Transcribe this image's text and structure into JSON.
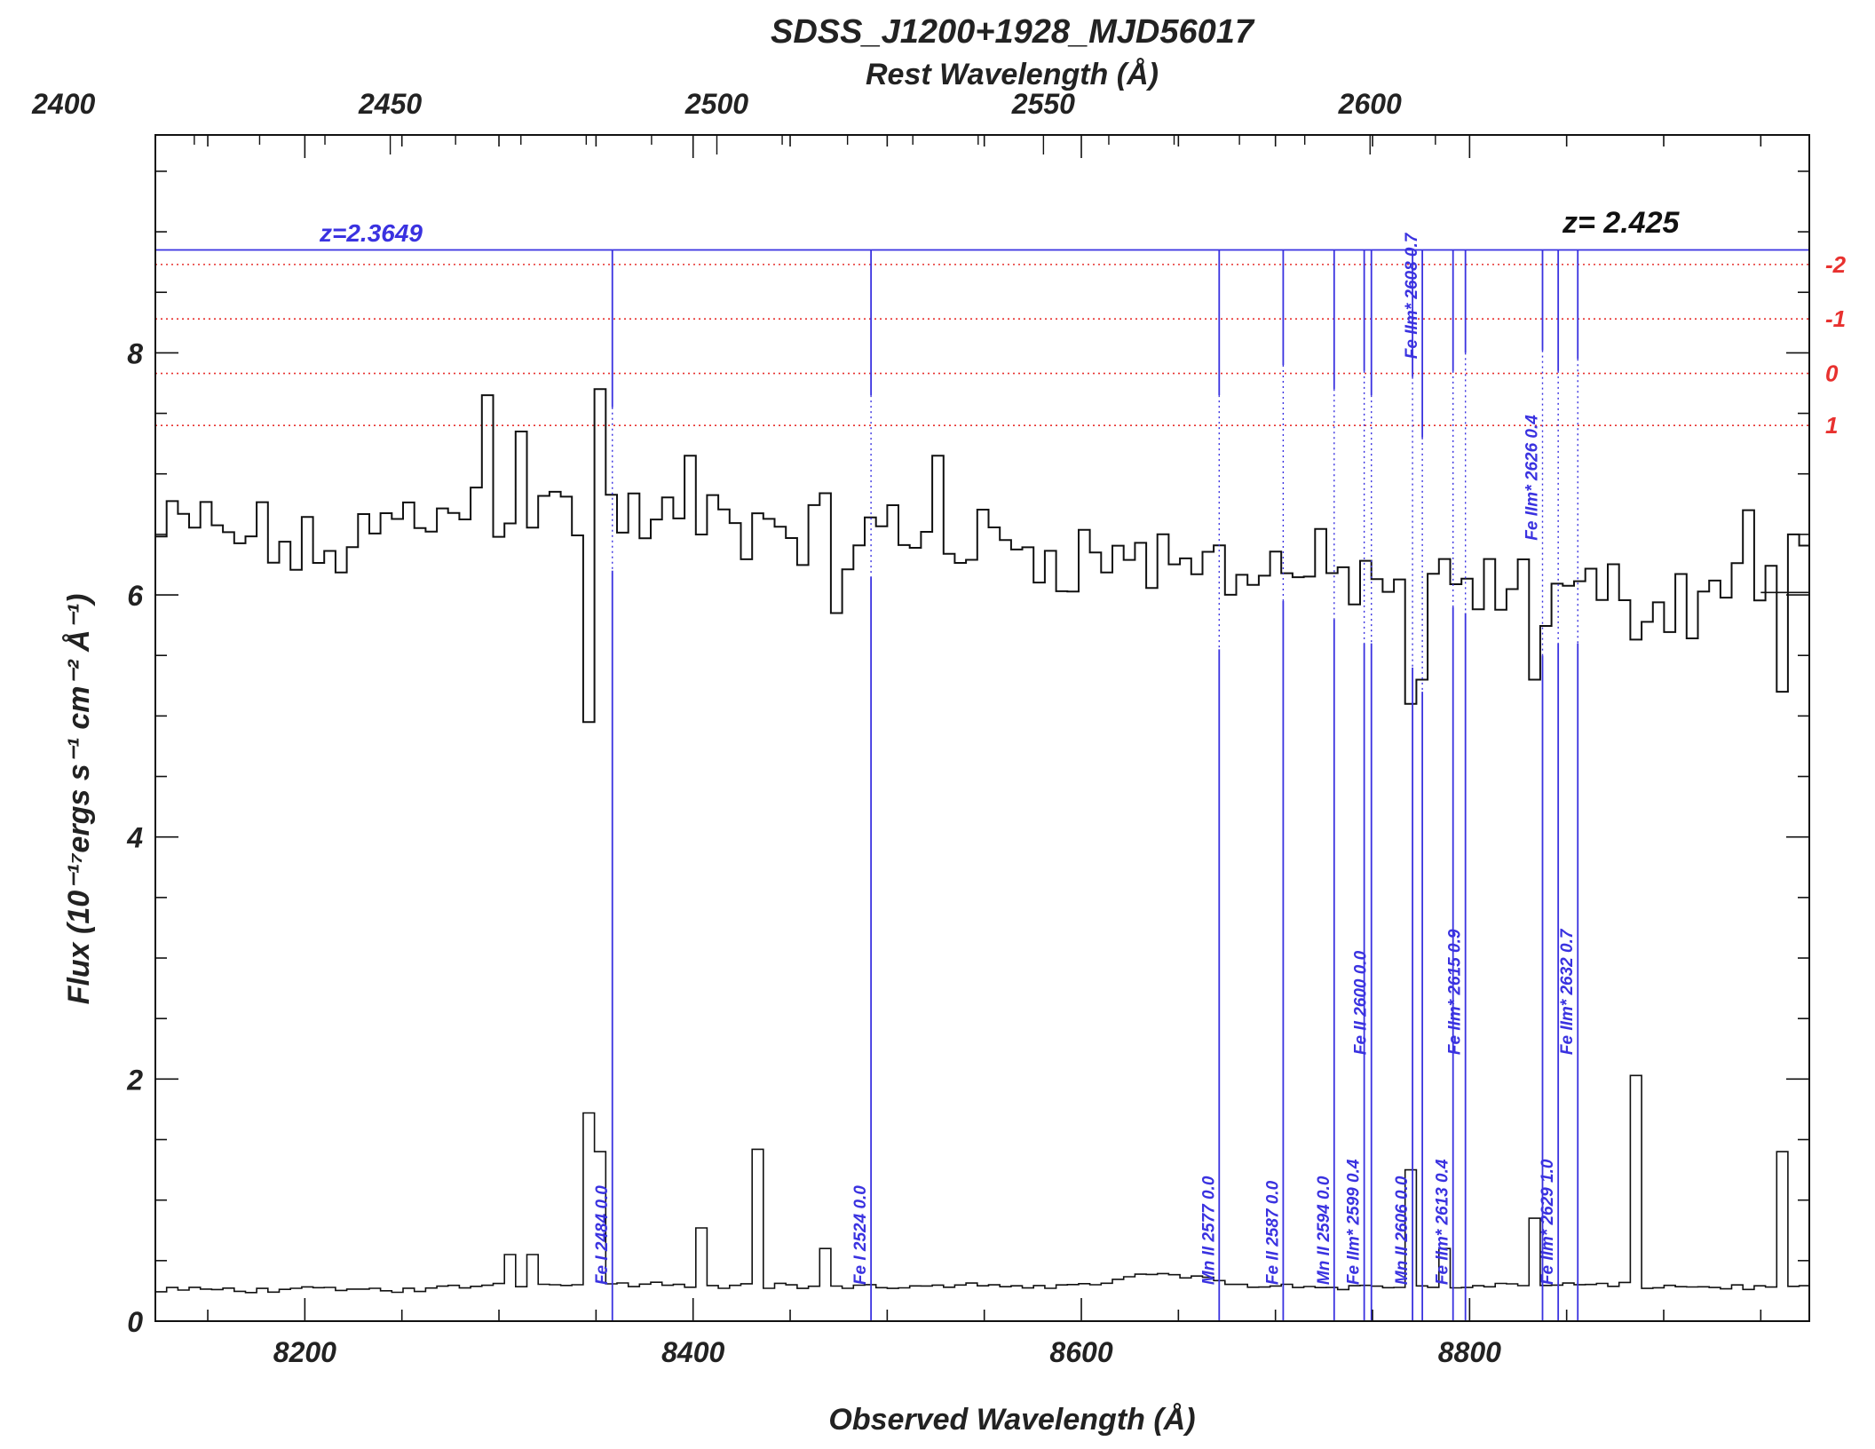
{
  "chart_data": {
    "type": "line",
    "title": "SDSS_J1200+1928_MJD56017",
    "xlabel": "Observed Wavelength (Å)",
    "ylabel": "Flux (10⁻¹⁷ergs s⁻¹ cm⁻² Å⁻¹)",
    "top_axis_label": "Rest Wavelength (Å)",
    "xlim": [
      8123,
      8975
    ],
    "ylim": [
      0,
      9.8
    ],
    "x_ticks": [
      8200,
      8400,
      8600,
      8800
    ],
    "y_ticks": [
      0,
      2,
      4,
      6,
      8
    ],
    "top_ticks": [
      2400,
      2450,
      2500,
      2550,
      2600
    ],
    "redshift_scale": 3.3649,
    "absorber_label": "z=2.3649",
    "qso_label": "z= 2.425",
    "absorber_level": 8.85,
    "dotted_levels": [
      {
        "label": "-2",
        "y": 8.73
      },
      {
        "label": "-1",
        "y": 8.28
      },
      {
        "label": "0",
        "y": 7.83
      },
      {
        "label": "1",
        "y": 7.4
      }
    ],
    "absorption_lines": [
      {
        "label": "Fe I 2484 0.0",
        "rest": 2484.0,
        "upper_bottom": 7.55,
        "lower_top": 6.2,
        "label_pos": "low"
      },
      {
        "label": "Fe I 2524 0.0",
        "rest": 2523.6,
        "upper_bottom": 7.65,
        "lower_top": 6.15,
        "label_pos": "low"
      },
      {
        "label": "Mn II 2577 0.0",
        "rest": 2576.9,
        "upper_bottom": 7.65,
        "lower_top": 5.55,
        "label_pos": "low"
      },
      {
        "label": "Fe II 2587 0.0",
        "rest": 2586.7,
        "upper_bottom": 7.9,
        "lower_top": 5.95,
        "label_pos": "low"
      },
      {
        "label": "Mn II 2594 0.0",
        "rest": 2594.5,
        "upper_bottom": 7.7,
        "lower_top": 5.8,
        "label_pos": "low"
      },
      {
        "label": "Fe IIm* 2599 0.4",
        "rest": 2599.1,
        "upper_bottom": 7.85,
        "lower_top": 5.6,
        "label_pos": "low"
      },
      {
        "label": "Fe II 2600 0.0",
        "rest": 2600.2,
        "upper_bottom": 7.65,
        "lower_top": 5.6,
        "label_pos": "mid"
      },
      {
        "label": "Mn II 2606 0.0",
        "rest": 2606.5,
        "upper_bottom": 7.8,
        "lower_top": 5.4,
        "label_pos": "low"
      },
      {
        "label": "Fe IIm* 2608 0.7",
        "rest": 2608.0,
        "upper_bottom": 7.3,
        "lower_top": 5.2,
        "label_pos": "top"
      },
      {
        "label": "Fe IIm* 2613 0.4",
        "rest": 2612.7,
        "upper_bottom": 7.85,
        "lower_top": 5.9,
        "label_pos": "low"
      },
      {
        "label": "Fe IIm* 2615 0.9",
        "rest": 2614.6,
        "upper_bottom": 8.0,
        "lower_top": 5.85,
        "label_pos": "mid"
      },
      {
        "label": "Fe IIm* 2626 0.4",
        "rest": 2626.4,
        "upper_bottom": 8.02,
        "lower_top": 5.5,
        "label_pos": "upper"
      },
      {
        "label": "Fe IIm* 2629 1.0",
        "rest": 2628.8,
        "upper_bottom": 7.85,
        "lower_top": 5.6,
        "label_pos": "low"
      },
      {
        "label": "Fe IIm* 2632 0.7",
        "rest": 2631.8,
        "upper_bottom": 7.95,
        "lower_top": 5.6,
        "label_pos": "mid"
      }
    ],
    "flux_anchors": [
      [
        8123,
        6.5
      ],
      [
        8150,
        6.55
      ],
      [
        8180,
        6.45
      ],
      [
        8200,
        6.3
      ],
      [
        8230,
        6.5
      ],
      [
        8260,
        6.65
      ],
      [
        8290,
        6.75
      ],
      [
        8320,
        6.7
      ],
      [
        8350,
        6.65
      ],
      [
        8380,
        6.6
      ],
      [
        8410,
        6.6
      ],
      [
        8440,
        6.55
      ],
      [
        8470,
        6.5
      ],
      [
        8500,
        6.5
      ],
      [
        8530,
        6.45
      ],
      [
        8560,
        6.4
      ],
      [
        8590,
        6.35
      ],
      [
        8620,
        6.3
      ],
      [
        8650,
        6.25
      ],
      [
        8680,
        6.25
      ],
      [
        8710,
        6.2
      ],
      [
        8740,
        6.15
      ],
      [
        8760,
        6.1
      ],
      [
        8790,
        6.05
      ],
      [
        8820,
        6.0
      ],
      [
        8850,
        6.05
      ],
      [
        8880,
        5.95
      ],
      [
        8910,
        5.95
      ],
      [
        8940,
        6.2
      ],
      [
        8975,
        6.15
      ]
    ],
    "flux_spikes": [
      {
        "x": 8290,
        "y": 7.65
      },
      {
        "x": 8306,
        "y": 7.35
      },
      {
        "x": 8346,
        "y": 4.95
      },
      {
        "x": 8350,
        "y": 7.7
      },
      {
        "x": 8394,
        "y": 7.15
      },
      {
        "x": 8469,
        "y": 5.85
      },
      {
        "x": 8522,
        "y": 7.15
      },
      {
        "x": 8766,
        "y": 5.1
      },
      {
        "x": 8770,
        "y": 7.8
      },
      {
        "x": 8774,
        "y": 5.3
      },
      {
        "x": 8828,
        "y": 5.3
      },
      {
        "x": 8939,
        "y": 6.7
      },
      {
        "x": 8957,
        "y": 5.2
      },
      {
        "x": 8966,
        "y": 6.5
      }
    ],
    "error_anchors": [
      [
        8123,
        0.26
      ],
      [
        8260,
        0.26
      ],
      [
        8290,
        0.3
      ],
      [
        8340,
        0.32
      ],
      [
        8400,
        0.3
      ],
      [
        8500,
        0.28
      ],
      [
        8600,
        0.3
      ],
      [
        8640,
        0.4
      ],
      [
        8680,
        0.3
      ],
      [
        8750,
        0.28
      ],
      [
        8850,
        0.3
      ],
      [
        8975,
        0.27
      ]
    ],
    "error_spikes": [
      {
        "x": 8304,
        "y": 0.55
      },
      {
        "x": 8312,
        "y": 0.55
      },
      {
        "x": 8346,
        "y": 1.72
      },
      {
        "x": 8350,
        "y": 1.4
      },
      {
        "x": 8403,
        "y": 0.77
      },
      {
        "x": 8433,
        "y": 1.42
      },
      {
        "x": 8467,
        "y": 0.6
      },
      {
        "x": 8768,
        "y": 1.25
      },
      {
        "x": 8784,
        "y": 0.6
      },
      {
        "x": 8828,
        "y": 0.85
      },
      {
        "x": 8885,
        "y": 2.03
      },
      {
        "x": 8958,
        "y": 1.4
      }
    ]
  }
}
